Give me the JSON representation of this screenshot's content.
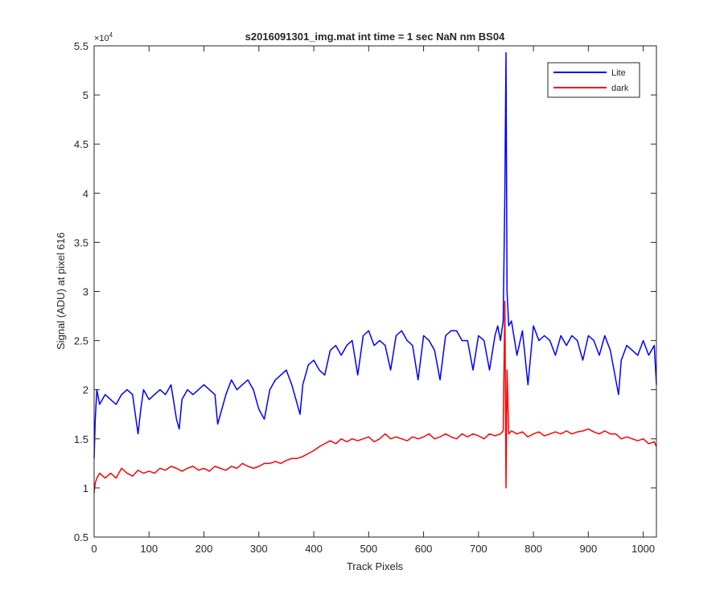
{
  "chart_data": {
    "type": "line",
    "title": "s2016091301_img.mat int time = 1 sec  NaN nm BS04",
    "xlabel": "Track Pixels",
    "ylabel": "Signal (ADU) at pixel 616",
    "y_exponent_label": "×10",
    "y_exponent_power": "4",
    "xlim": [
      0,
      1024
    ],
    "ylim": [
      0.5,
      5.5
    ],
    "y_scale_factor": 10000,
    "xticks": [
      0,
      100,
      200,
      300,
      400,
      500,
      600,
      700,
      800,
      900,
      1000
    ],
    "yticks": [
      0.5,
      1,
      1.5,
      2,
      2.5,
      3,
      3.5,
      4,
      4.5,
      5,
      5.5
    ],
    "xtick_labels": [
      "0",
      "100",
      "200",
      "300",
      "400",
      "500",
      "600",
      "700",
      "800",
      "900",
      "1000"
    ],
    "ytick_labels": [
      "0.5",
      "1",
      "1.5",
      "2",
      "2.5",
      "3",
      "3.5",
      "4",
      "4.5",
      "5",
      "5.5"
    ],
    "grid": false,
    "legend_position": "top-right",
    "series": [
      {
        "name": "Lite",
        "color": "#0000ff",
        "x": [
          0,
          2,
          5,
          10,
          20,
          30,
          40,
          50,
          60,
          70,
          75,
          80,
          85,
          90,
          100,
          110,
          120,
          130,
          140,
          150,
          155,
          160,
          170,
          180,
          190,
          200,
          210,
          220,
          225,
          230,
          240,
          250,
          260,
          270,
          280,
          290,
          300,
          310,
          320,
          330,
          340,
          350,
          360,
          370,
          375,
          380,
          390,
          400,
          410,
          420,
          430,
          440,
          450,
          460,
          470,
          480,
          490,
          500,
          510,
          520,
          530,
          540,
          550,
          560,
          570,
          580,
          590,
          600,
          610,
          620,
          630,
          640,
          650,
          660,
          670,
          680,
          690,
          700,
          710,
          720,
          730,
          735,
          740,
          745,
          748,
          750,
          752,
          755,
          760,
          770,
          780,
          790,
          800,
          810,
          820,
          830,
          840,
          850,
          860,
          870,
          880,
          890,
          900,
          910,
          920,
          930,
          940,
          950,
          955,
          960,
          970,
          980,
          990,
          1000,
          1010,
          1020,
          1024
        ],
        "values": [
          1.3,
          1.7,
          2.0,
          1.85,
          1.95,
          1.9,
          1.85,
          1.95,
          2.0,
          1.95,
          1.75,
          1.55,
          1.8,
          2.0,
          1.9,
          1.95,
          2.0,
          1.95,
          2.05,
          1.7,
          1.6,
          1.9,
          2.0,
          1.95,
          2.0,
          2.05,
          2.0,
          1.95,
          1.65,
          1.75,
          1.95,
          2.1,
          2.0,
          2.05,
          2.1,
          2.0,
          1.8,
          1.7,
          2.0,
          2.1,
          2.15,
          2.2,
          2.05,
          1.85,
          1.75,
          2.05,
          2.25,
          2.3,
          2.2,
          2.15,
          2.4,
          2.45,
          2.35,
          2.45,
          2.5,
          2.15,
          2.55,
          2.6,
          2.45,
          2.5,
          2.45,
          2.2,
          2.55,
          2.6,
          2.5,
          2.45,
          2.1,
          2.55,
          2.5,
          2.4,
          2.1,
          2.55,
          2.6,
          2.6,
          2.5,
          2.5,
          2.2,
          2.55,
          2.5,
          2.2,
          2.55,
          2.65,
          2.5,
          2.7,
          4.0,
          5.43,
          3.0,
          2.65,
          2.7,
          2.35,
          2.6,
          2.05,
          2.65,
          2.5,
          2.55,
          2.5,
          2.35,
          2.55,
          2.45,
          2.55,
          2.5,
          2.3,
          2.55,
          2.5,
          2.35,
          2.55,
          2.4,
          2.1,
          1.95,
          2.3,
          2.45,
          2.4,
          2.35,
          2.5,
          2.35,
          2.45,
          2.05
        ]
      },
      {
        "name": "dark",
        "color": "#ff0000",
        "x": [
          0,
          2,
          5,
          10,
          20,
          30,
          40,
          50,
          60,
          70,
          80,
          90,
          100,
          110,
          120,
          130,
          140,
          150,
          160,
          170,
          180,
          190,
          200,
          210,
          220,
          230,
          240,
          250,
          260,
          270,
          280,
          290,
          300,
          310,
          320,
          330,
          340,
          350,
          360,
          370,
          380,
          390,
          400,
          410,
          420,
          430,
          440,
          450,
          460,
          470,
          480,
          490,
          500,
          510,
          520,
          530,
          540,
          550,
          560,
          570,
          580,
          590,
          600,
          610,
          620,
          630,
          640,
          650,
          660,
          670,
          680,
          690,
          700,
          710,
          720,
          730,
          740,
          745,
          748,
          750,
          752,
          755,
          760,
          770,
          780,
          790,
          800,
          810,
          820,
          830,
          840,
          850,
          860,
          870,
          880,
          890,
          900,
          910,
          920,
          930,
          940,
          950,
          960,
          970,
          980,
          990,
          1000,
          1010,
          1020,
          1024
        ],
        "values": [
          0.95,
          1.05,
          1.1,
          1.15,
          1.1,
          1.15,
          1.1,
          1.2,
          1.15,
          1.12,
          1.18,
          1.15,
          1.17,
          1.15,
          1.2,
          1.18,
          1.22,
          1.2,
          1.17,
          1.2,
          1.22,
          1.18,
          1.2,
          1.17,
          1.22,
          1.2,
          1.18,
          1.22,
          1.2,
          1.25,
          1.22,
          1.2,
          1.22,
          1.25,
          1.25,
          1.27,
          1.25,
          1.28,
          1.3,
          1.3,
          1.32,
          1.35,
          1.38,
          1.42,
          1.45,
          1.48,
          1.45,
          1.5,
          1.47,
          1.5,
          1.48,
          1.5,
          1.52,
          1.47,
          1.5,
          1.55,
          1.5,
          1.52,
          1.5,
          1.48,
          1.52,
          1.5,
          1.52,
          1.55,
          1.5,
          1.52,
          1.55,
          1.52,
          1.5,
          1.55,
          1.52,
          1.55,
          1.53,
          1.5,
          1.55,
          1.53,
          1.55,
          1.58,
          2.9,
          1.0,
          2.2,
          1.55,
          1.58,
          1.55,
          1.57,
          1.52,
          1.55,
          1.57,
          1.53,
          1.55,
          1.57,
          1.55,
          1.58,
          1.55,
          1.57,
          1.58,
          1.6,
          1.57,
          1.55,
          1.58,
          1.55,
          1.55,
          1.5,
          1.52,
          1.5,
          1.48,
          1.5,
          1.45,
          1.47,
          1.42
        ]
      }
    ]
  }
}
